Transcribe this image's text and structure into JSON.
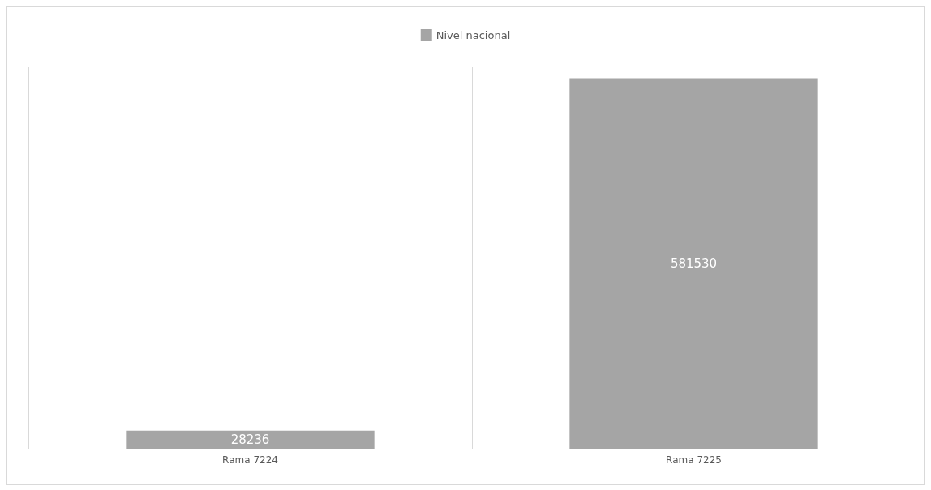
{
  "chart_data": {
    "type": "bar",
    "categories": [
      "Rama 7224",
      "Rama 7225"
    ],
    "series": [
      {
        "name": "Nivel nacional",
        "color": "#a5a5a5",
        "values": [
          28236,
          581530
        ]
      }
    ],
    "data_labels": true,
    "grid": "x",
    "legend": "top"
  }
}
